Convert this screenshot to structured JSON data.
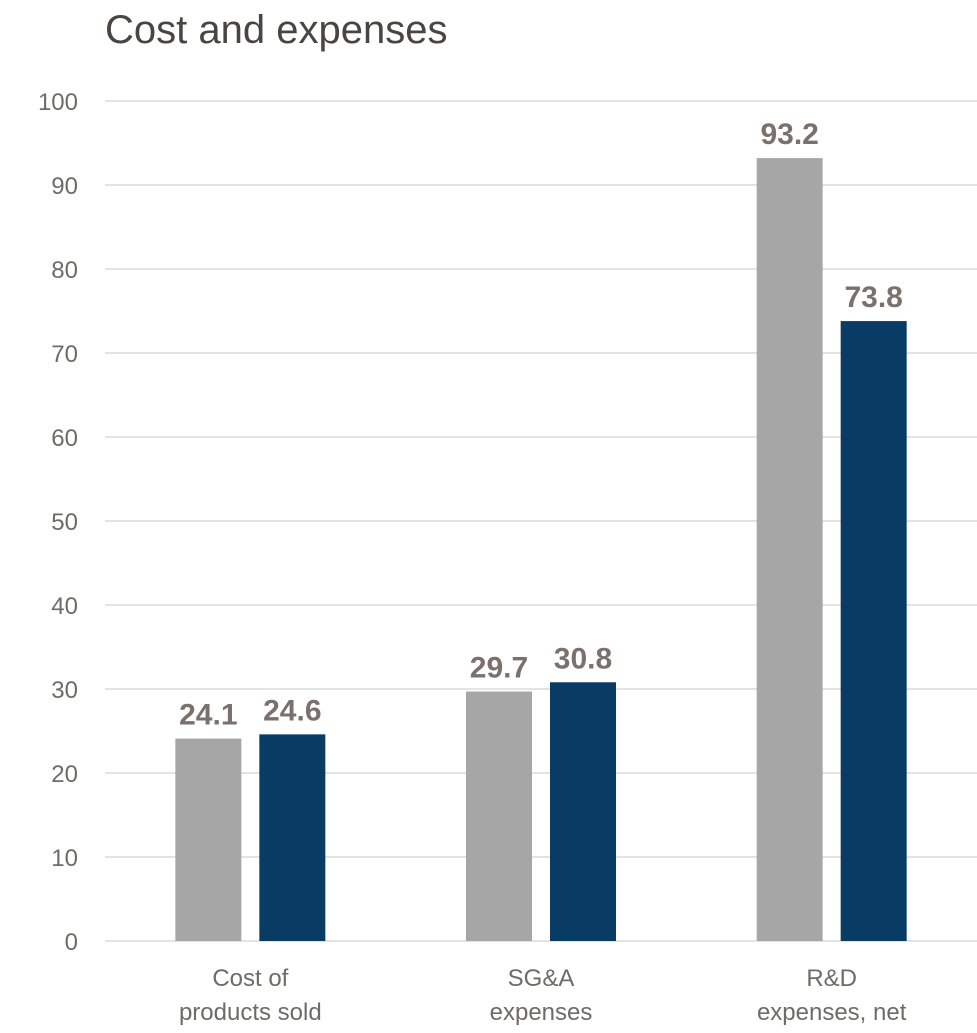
{
  "chart_data": {
    "type": "bar",
    "title": "Cost and expenses",
    "xlabel": "",
    "ylabel": "",
    "ylim": [
      0,
      100
    ],
    "yticks": [
      0,
      10,
      20,
      30,
      40,
      50,
      60,
      70,
      80,
      90,
      100
    ],
    "grid": true,
    "categories": [
      [
        "Cost of",
        "products sold"
      ],
      [
        "SG&A",
        "expenses"
      ],
      [
        "R&D",
        "expenses, net"
      ]
    ],
    "series": [
      {
        "values": [
          24.1,
          29.7,
          93.2
        ],
        "color": "#a6a6a6"
      },
      {
        "values": [
          24.6,
          30.8,
          73.8
        ],
        "color": "#083c64"
      }
    ],
    "data_label_color": "#7a716c",
    "grid_color": "#e3e3e3"
  }
}
